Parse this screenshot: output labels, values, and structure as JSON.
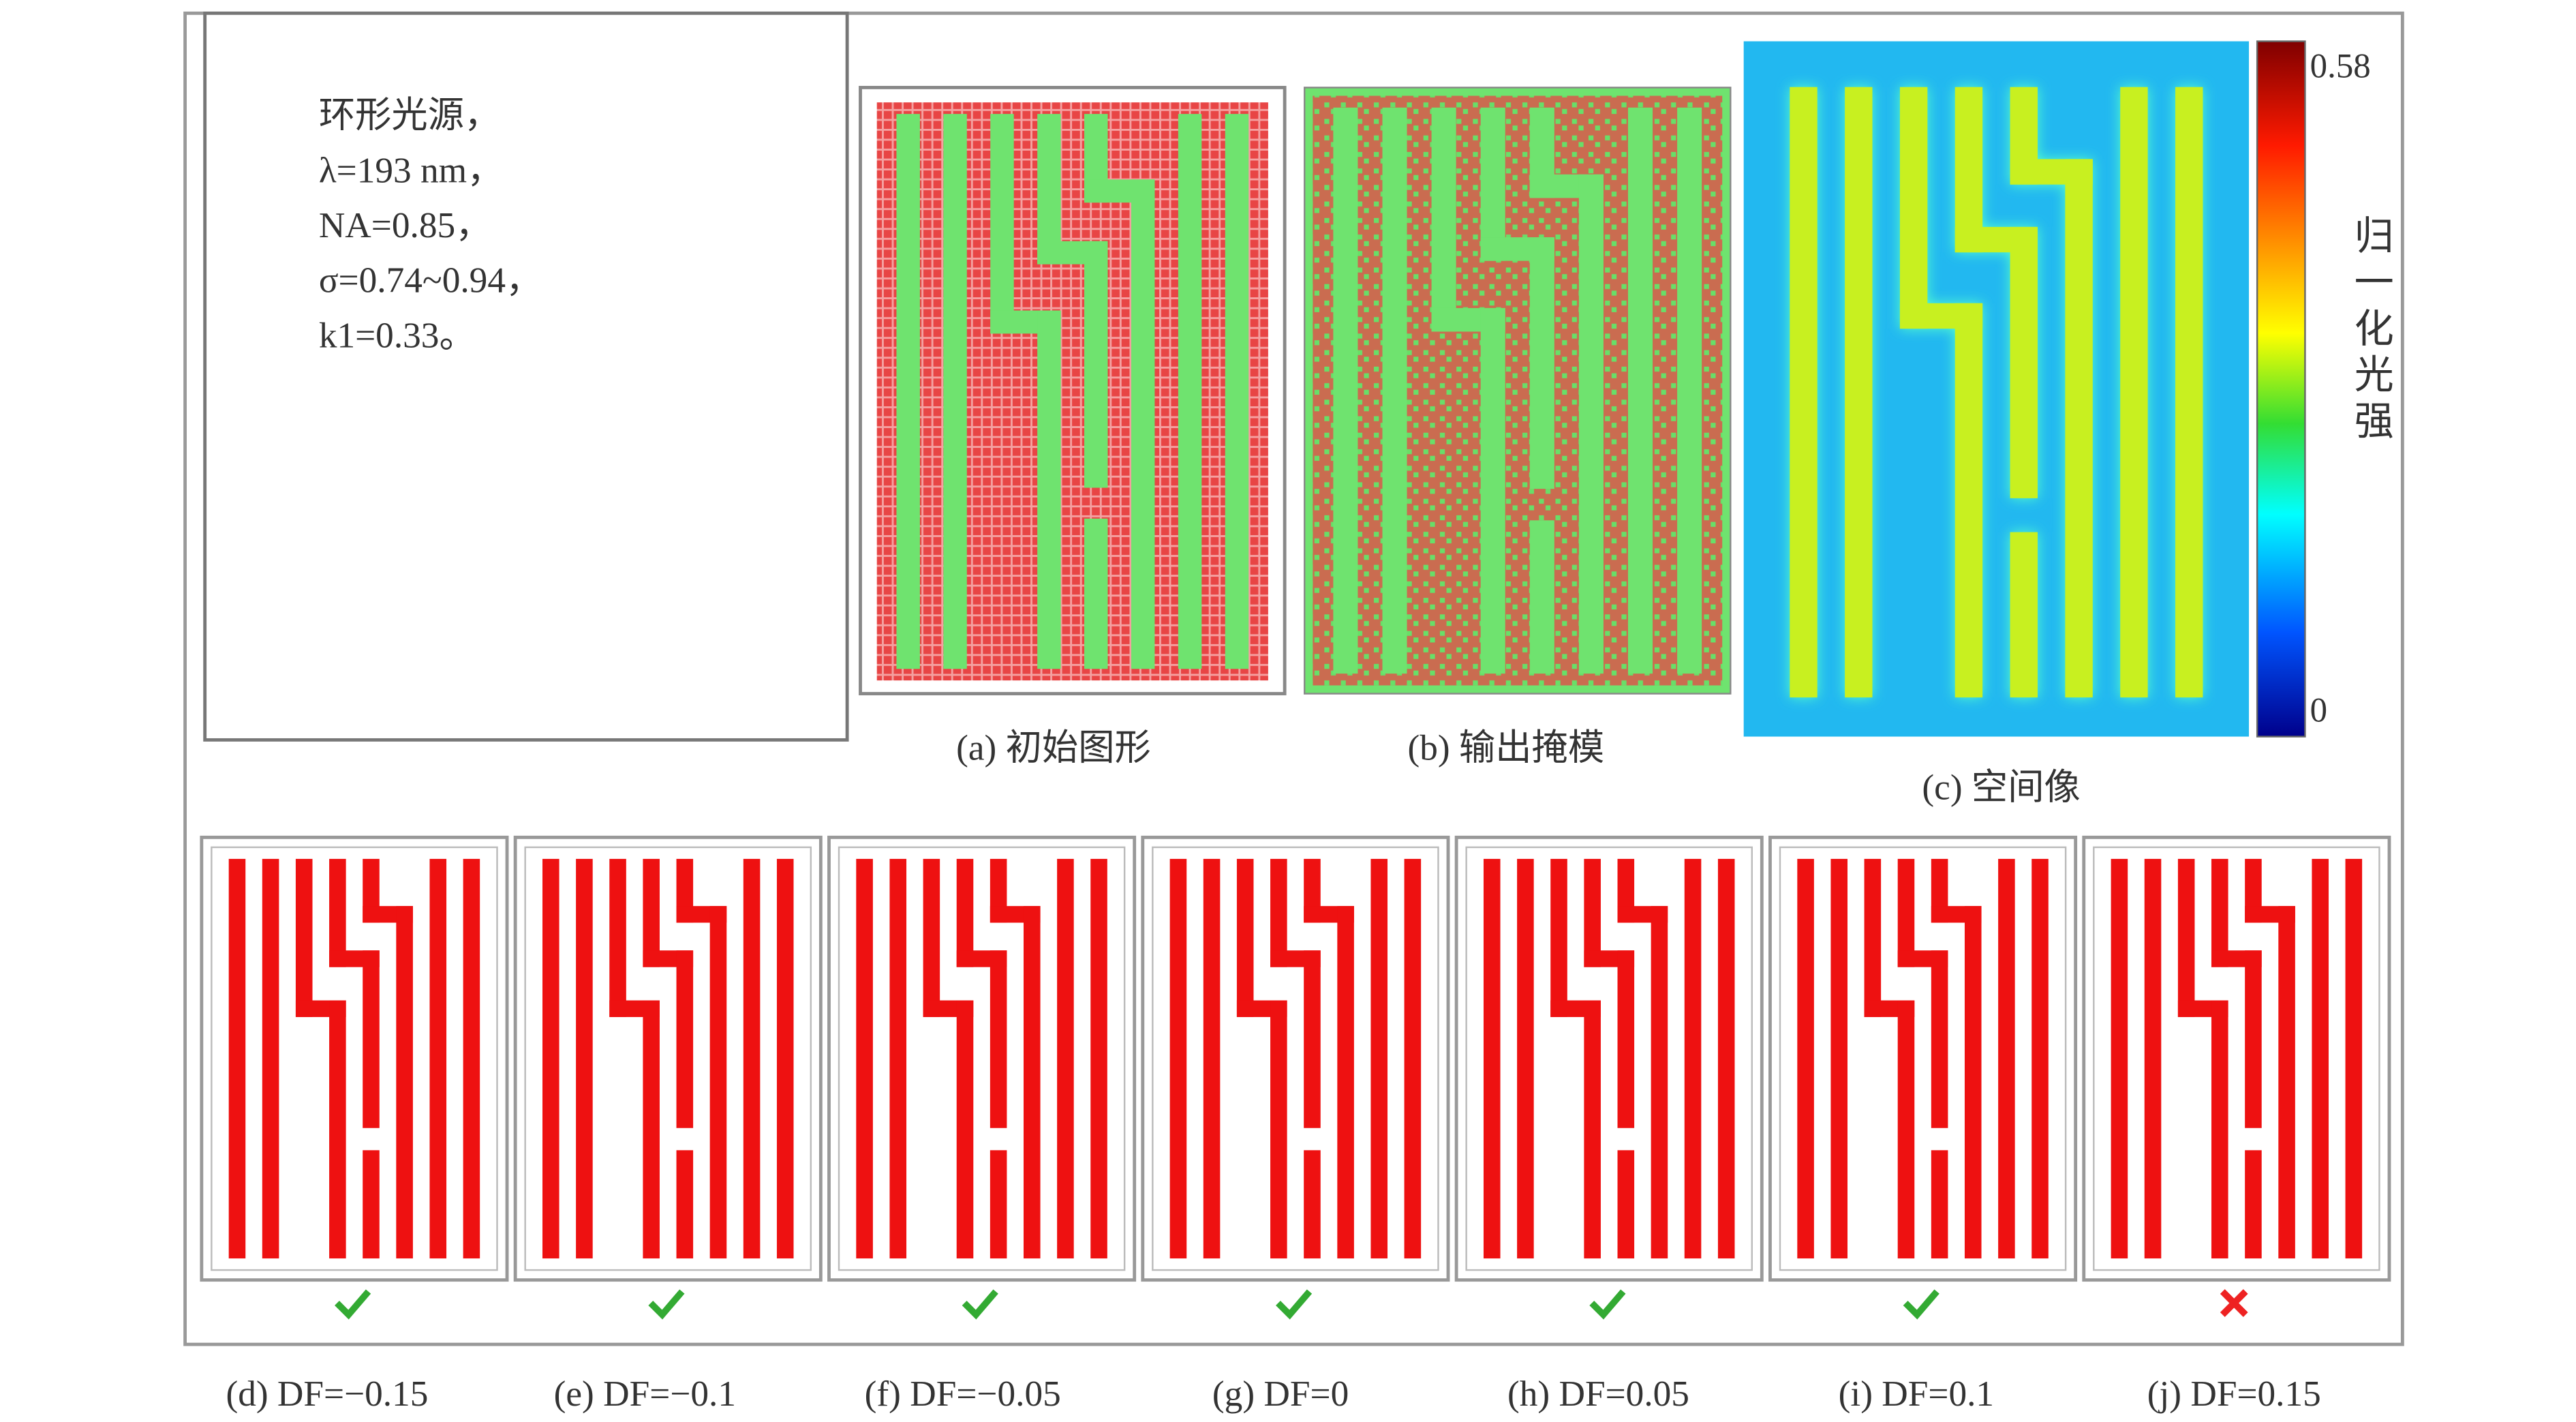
{
  "parameters": {
    "lines": [
      "环形光源，",
      "λ=193 nm，",
      "NA=0.85，",
      "σ=0.74~0.94，",
      "k1=0.33。"
    ]
  },
  "panels": {
    "a": "(a) 初始图形",
    "b": "(b) 输出掩模",
    "c": "(c) 空间像"
  },
  "colorbar": {
    "max": 0.58,
    "min": 0,
    "label": "归一化光强"
  },
  "defocus": [
    "(d) DF=−0.15",
    "(e) DF=−0.1",
    "(f) DF=−0.05",
    "(g) DF=0",
    "(h) DF=0.05",
    "(i) DF=0.1",
    "(j) DF=0.15"
  ]
}
